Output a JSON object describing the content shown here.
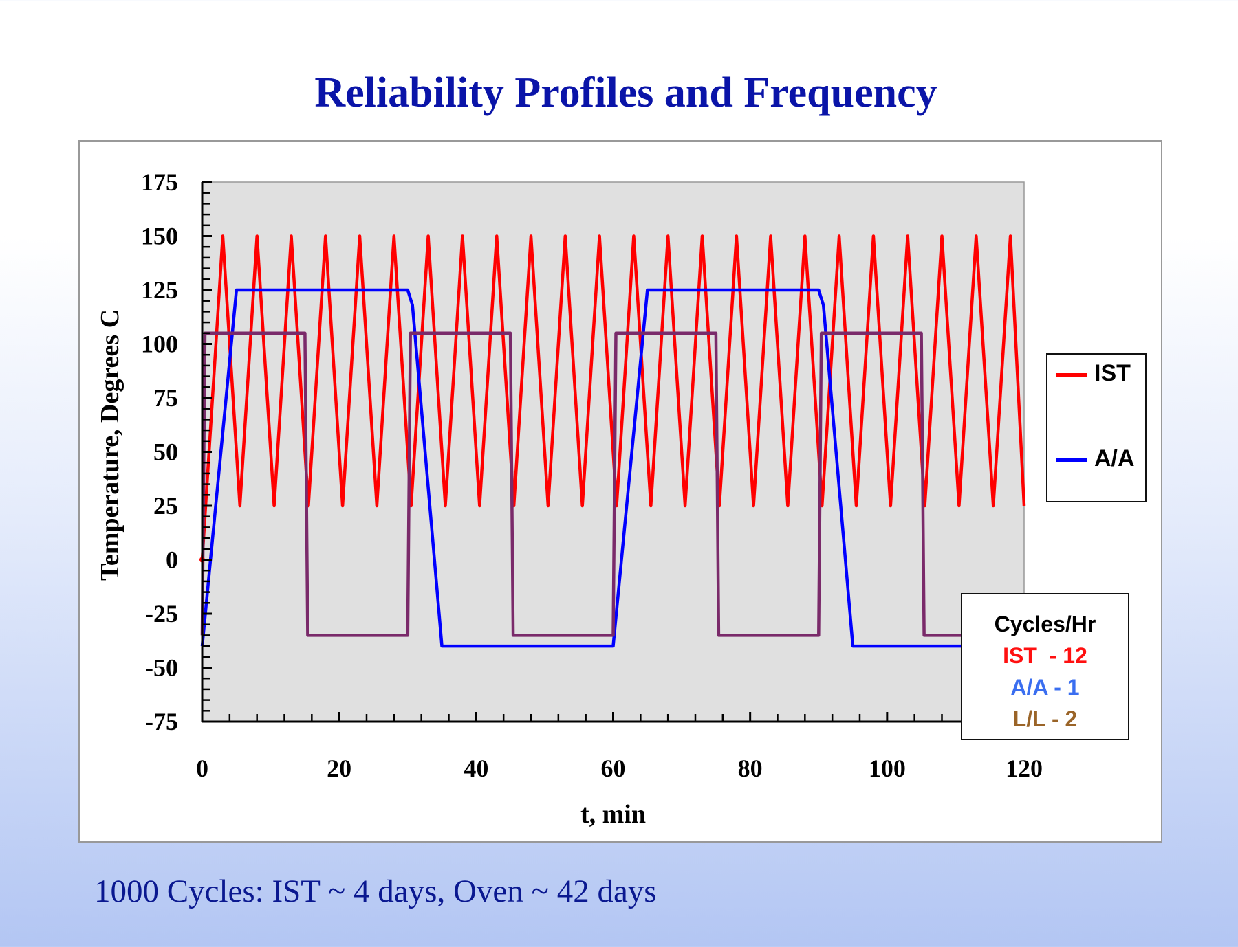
{
  "title": "Reliability Profiles and Frequency",
  "footnote": "1000 Cycles: IST ~ 4 days, Oven ~ 42 days",
  "chart_data": {
    "type": "line",
    "xlabel": "t, min",
    "ylabel": "Temperature, Degrees C",
    "xlim": [
      0,
      120
    ],
    "ylim": [
      -75,
      175
    ],
    "xticks": [
      0,
      20,
      40,
      60,
      80,
      100,
      120
    ],
    "yticks": [
      -75,
      -50,
      -25,
      0,
      25,
      50,
      75,
      100,
      125,
      150,
      175
    ],
    "x_minor_step": 4,
    "y_minor_step": 5,
    "grid": false,
    "plot_background": "#e0e0e0",
    "legend_placement": "right",
    "series": [
      {
        "name": "IST",
        "color": "#ff0000",
        "profile": "triangle",
        "min": 25,
        "max": 150,
        "period_min": 5,
        "first_peak_t": 3,
        "points_start": [
          [
            0,
            0
          ]
        ],
        "end": [
          120,
          25
        ]
      },
      {
        "name": "A/A",
        "color": "#0000ff",
        "points": [
          [
            0,
            -40
          ],
          [
            5,
            125
          ],
          [
            30,
            125
          ],
          [
            30.7,
            118
          ],
          [
            35,
            -40
          ],
          [
            60,
            -40
          ],
          [
            65,
            125
          ],
          [
            90,
            125
          ],
          [
            90.7,
            118
          ],
          [
            95,
            -40
          ],
          [
            120,
            -40
          ]
        ]
      },
      {
        "name": "L/L",
        "color": "#7a2a6a",
        "points": [
          [
            0,
            -35
          ],
          [
            0.4,
            105
          ],
          [
            15,
            105
          ],
          [
            15.4,
            -35
          ],
          [
            30,
            -35
          ],
          [
            30.4,
            105
          ],
          [
            45,
            105
          ],
          [
            45.4,
            -35
          ],
          [
            60,
            -35
          ],
          [
            60.4,
            105
          ],
          [
            75,
            105
          ],
          [
            75.4,
            -35
          ],
          [
            90,
            -35
          ],
          [
            90.4,
            105
          ],
          [
            105,
            105
          ],
          [
            105.4,
            -35
          ],
          [
            120,
            -35
          ]
        ]
      }
    ],
    "legend": [
      "IST",
      "A/A"
    ],
    "annotation": {
      "heading": "Cycles/Hr",
      "lines": [
        {
          "text": "IST  - 12",
          "color": "#ff1010"
        },
        {
          "text": "A/A - 1",
          "color": "#3a6ef0"
        },
        {
          "text": "L/L - 2",
          "color": "#9a6428"
        }
      ]
    }
  }
}
